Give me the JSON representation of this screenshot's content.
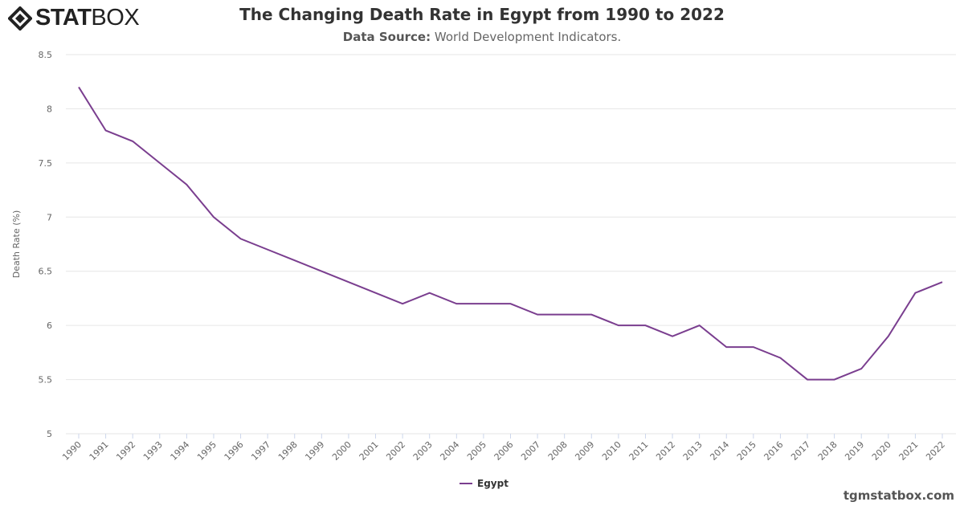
{
  "brand": {
    "logo_bold": "STAT",
    "logo_light": "BOX"
  },
  "chart_data": {
    "type": "line",
    "title": "The Changing Death Rate in Egypt from 1990 to 2022",
    "subtitle_label": "Data Source:",
    "subtitle_value": "World Development Indicators.",
    "ylabel": "Death Rate (%)",
    "xlabel": "",
    "ylim": [
      5,
      8.5
    ],
    "yticks": [
      "5",
      "5.5",
      "6",
      "6.5",
      "7",
      "7.5",
      "8",
      "8.5"
    ],
    "grid": true,
    "legend_position": "bottom",
    "x": [
      "1990",
      "1991",
      "1992",
      "1993",
      "1994",
      "1995",
      "1996",
      "1997",
      "1998",
      "1999",
      "2000",
      "2001",
      "2002",
      "2003",
      "2004",
      "2005",
      "2006",
      "2007",
      "2008",
      "2009",
      "2010",
      "2011",
      "2012",
      "2013",
      "2014",
      "2015",
      "2016",
      "2017",
      "2018",
      "2019",
      "2020",
      "2021",
      "2022"
    ],
    "series": [
      {
        "name": "Egypt",
        "color": "#7a3e8f",
        "values": [
          8.2,
          7.8,
          7.7,
          7.5,
          7.3,
          7.0,
          6.8,
          6.7,
          6.6,
          6.5,
          6.4,
          6.3,
          6.2,
          6.3,
          6.2,
          6.2,
          6.2,
          6.1,
          6.1,
          6.1,
          6.0,
          6.0,
          5.9,
          6.0,
          5.8,
          5.8,
          5.7,
          5.5,
          5.5,
          5.6,
          5.9,
          6.3,
          6.4
        ]
      }
    ]
  },
  "footer": {
    "credit": "tgmstatbox.com"
  }
}
